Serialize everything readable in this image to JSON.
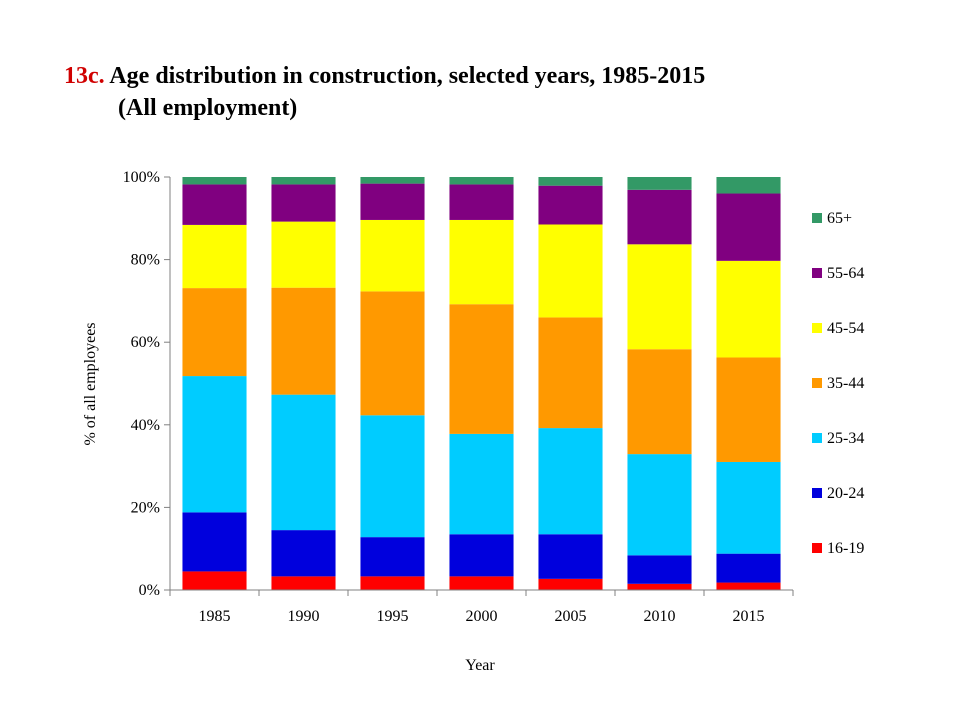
{
  "chart_data": {
    "type": "bar",
    "stacked": true,
    "title_number": "13c.",
    "title": "Age distribution in construction, selected years, 1985-2015",
    "subtitle": "(All employment)",
    "xlabel": "Year",
    "ylabel": "% of all employees",
    "ylim": [
      0,
      100
    ],
    "yticks": [
      "0%",
      "20%",
      "40%",
      "60%",
      "80%",
      "100%"
    ],
    "grid": false,
    "legend_position": "right",
    "categories": [
      "1985",
      "1990",
      "1995",
      "2000",
      "2005",
      "2010",
      "2015"
    ],
    "series": [
      {
        "name": "16-19",
        "color": "#ff0000",
        "values": [
          4.5,
          3.3,
          3.3,
          3.3,
          2.7,
          1.5,
          1.8
        ]
      },
      {
        "name": "20-24",
        "color": "#0000dd",
        "values": [
          14.3,
          11.2,
          9.5,
          10.2,
          10.8,
          6.9,
          7.0
        ]
      },
      {
        "name": "25-34",
        "color": "#00ccff",
        "values": [
          33.0,
          32.8,
          29.5,
          24.3,
          25.7,
          24.5,
          22.2
        ]
      },
      {
        "name": "35-44",
        "color": "#ff9900",
        "values": [
          21.3,
          25.9,
          30.0,
          31.4,
          26.8,
          25.4,
          25.3
        ]
      },
      {
        "name": "45-54",
        "color": "#ffff00",
        "values": [
          15.3,
          16.0,
          17.3,
          20.4,
          22.5,
          25.4,
          23.4
        ]
      },
      {
        "name": "55-64",
        "color": "#800080",
        "values": [
          9.8,
          9.0,
          8.8,
          8.6,
          9.4,
          13.2,
          16.3
        ]
      },
      {
        "name": "65+",
        "color": "#339966",
        "values": [
          1.8,
          1.8,
          1.6,
          1.8,
          2.1,
          3.1,
          4.0
        ]
      }
    ]
  }
}
